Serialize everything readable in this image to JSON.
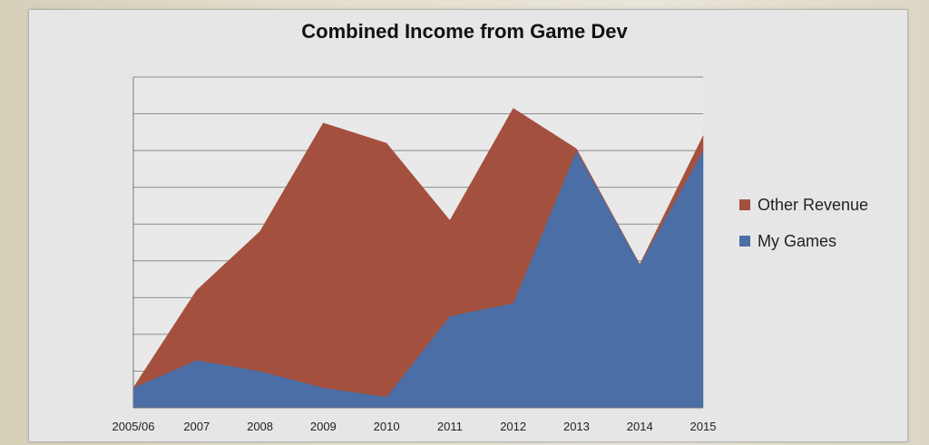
{
  "chart_data": {
    "type": "area",
    "stacked": true,
    "title": "Combined Income from Game Dev",
    "xlabel": "",
    "ylabel": "",
    "categories": [
      "2005/06",
      "2007",
      "2008",
      "2009",
      "2010",
      "2011",
      "2012",
      "2013",
      "2014",
      "2015"
    ],
    "ylim": [
      0,
      9
    ],
    "gridlines": [
      1,
      2,
      3,
      4,
      5,
      6,
      7,
      8,
      9
    ],
    "grid": true,
    "y_tick_labels": false,
    "legend_position": "right",
    "series": [
      {
        "name": "My Games",
        "color": "#4a6ea5",
        "values": [
          0.55,
          1.3,
          1.0,
          0.55,
          0.3,
          2.5,
          2.85,
          7.0,
          3.9,
          7.0
        ]
      },
      {
        "name": "Other Revenue",
        "color": "#a4503e",
        "values": [
          0.0,
          1.9,
          3.8,
          7.2,
          6.9,
          2.6,
          5.3,
          0.05,
          0.0,
          0.4
        ]
      }
    ],
    "legend_order": [
      "Other Revenue",
      "My Games"
    ]
  }
}
